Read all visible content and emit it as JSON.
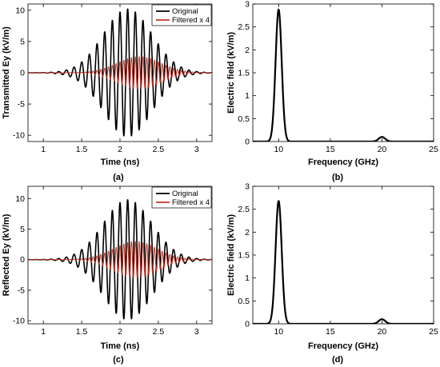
{
  "chart_data": [
    {
      "id": "a",
      "type": "line",
      "caption": "(a)",
      "xlabel": "Time (ns)",
      "ylabel": "Transmitted Ey (kV/m)",
      "xlim": [
        0.8,
        3.2
      ],
      "ylim": [
        -11,
        11
      ],
      "xticks": [
        1,
        1.5,
        2,
        2.5,
        3
      ],
      "yticks": [
        -10,
        -5,
        0,
        5,
        10
      ],
      "xtick_labels": [
        "1",
        "1.5",
        "2",
        "2.5",
        "3"
      ],
      "ytick_labels": [
        "-10",
        "-5",
        "0",
        "5",
        "10"
      ],
      "legend": {
        "position": "top-right",
        "entries": [
          "Original",
          "Filtered x 4"
        ]
      },
      "series": [
        {
          "name": "Original",
          "color": "#000000",
          "signal": "pulse",
          "center_ns": 2.1,
          "width_ns": 0.45,
          "freq_ghz": 10,
          "peak": 10.2
        },
        {
          "name": "Filtered x 4",
          "color": "#c0392b",
          "signal": "pulse",
          "center_ns": 2.25,
          "width_ns": 0.4,
          "freq_ghz": 20,
          "peak": 2.6
        }
      ]
    },
    {
      "id": "b",
      "type": "line",
      "caption": "(b)",
      "xlabel": "Frequency (GHz)",
      "ylabel": "Electric field (kV/m)",
      "xlim": [
        7.5,
        25
      ],
      "ylim": [
        0,
        3
      ],
      "xticks": [
        10,
        15,
        20,
        25
      ],
      "yticks": [
        0,
        0.5,
        1,
        1.5,
        2,
        2.5,
        3
      ],
      "xtick_labels": [
        "10",
        "15",
        "20",
        "25"
      ],
      "ytick_labels": [
        "0",
        "0.5",
        "1",
        "1.5",
        "2",
        "2.5",
        "3"
      ],
      "series": [
        {
          "color": "#000000",
          "signal": "spectrum",
          "peaks": [
            {
              "f_ghz": 10,
              "amp": 2.88,
              "width_ghz": 0.42
            },
            {
              "f_ghz": 20,
              "amp": 0.1,
              "width_ghz": 0.45
            }
          ]
        }
      ]
    },
    {
      "id": "c",
      "type": "line",
      "caption": "(c)",
      "xlabel": "Time (ns)",
      "ylabel": "Reflected Ey (kV/m)",
      "xlim": [
        0.8,
        3.2
      ],
      "ylim": [
        -10.5,
        12
      ],
      "xticks": [
        1,
        1.5,
        2,
        2.5,
        3
      ],
      "yticks": [
        -10,
        -5,
        0,
        5,
        10
      ],
      "xtick_labels": [
        "1",
        "1.5",
        "2",
        "2.5",
        "3"
      ],
      "ytick_labels": [
        "-10",
        "-5",
        "0",
        "5",
        "10"
      ],
      "legend": {
        "position": "top-right",
        "entries": [
          "Original",
          "Filtered x 4"
        ]
      },
      "series": [
        {
          "name": "Original",
          "color": "#000000",
          "signal": "pulse",
          "center_ns": 2.1,
          "width_ns": 0.45,
          "freq_ghz": 10,
          "peak": 9.8
        },
        {
          "name": "Filtered x 4",
          "color": "#c0392b",
          "signal": "pulse",
          "center_ns": 2.2,
          "width_ns": 0.4,
          "freq_ghz": 20,
          "peak": 3.0
        }
      ]
    },
    {
      "id": "d",
      "type": "line",
      "caption": "(d)",
      "xlabel": "Frequency (GHz)",
      "ylabel": "Electric field (kV/m)",
      "xlim": [
        7.5,
        25
      ],
      "ylim": [
        0,
        3
      ],
      "xticks": [
        10,
        15,
        20,
        25
      ],
      "yticks": [
        0,
        0.5,
        1,
        1.5,
        2,
        2.5,
        3
      ],
      "xtick_labels": [
        "10",
        "15",
        "20",
        "25"
      ],
      "ytick_labels": [
        "0",
        "0.5",
        "1",
        "1.5",
        "2",
        "2.5",
        "3"
      ],
      "series": [
        {
          "color": "#000000",
          "signal": "spectrum",
          "peaks": [
            {
              "f_ghz": 10,
              "amp": 2.68,
              "width_ghz": 0.42
            },
            {
              "f_ghz": 20,
              "amp": 0.1,
              "width_ghz": 0.45
            }
          ]
        }
      ]
    }
  ]
}
